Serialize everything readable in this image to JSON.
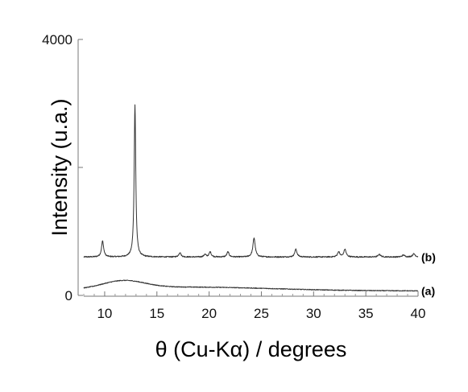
{
  "chart_data": {
    "type": "line",
    "title": "",
    "xlabel": "θ (Cu-Kα) / degrees",
    "ylabel": "Intensity (u.a.)",
    "xlim": [
      8,
      40
    ],
    "ylim": [
      0,
      4000
    ],
    "x_ticks": [
      10,
      15,
      20,
      25,
      30,
      35,
      40
    ],
    "x_tick_labels": [
      "10",
      "15",
      "20",
      "25",
      "30",
      "35",
      "40"
    ],
    "y_ticks": [
      0,
      2000,
      4000
    ],
    "y_tick_labels": [
      "0",
      "",
      "4000"
    ],
    "grid": false,
    "line_color": "#333333",
    "series": [
      {
        "name": "(b)",
        "baseline": 600,
        "noise": 18,
        "peaks": [
          {
            "x": 9.8,
            "height": 250,
            "width": 0.12
          },
          {
            "x": 12.9,
            "height": 2380,
            "width": 0.09
          },
          {
            "x": 17.2,
            "height": 70,
            "width": 0.12
          },
          {
            "x": 19.6,
            "height": 40,
            "width": 0.12
          },
          {
            "x": 20.1,
            "height": 80,
            "width": 0.12
          },
          {
            "x": 21.8,
            "height": 80,
            "width": 0.12
          },
          {
            "x": 24.3,
            "height": 300,
            "width": 0.13
          },
          {
            "x": 28.3,
            "height": 120,
            "width": 0.13
          },
          {
            "x": 32.4,
            "height": 80,
            "width": 0.13
          },
          {
            "x": 33.0,
            "height": 120,
            "width": 0.13
          },
          {
            "x": 36.3,
            "height": 40,
            "width": 0.15
          },
          {
            "x": 38.6,
            "height": 30,
            "width": 0.15
          },
          {
            "x": 39.6,
            "height": 50,
            "width": 0.15
          }
        ]
      },
      {
        "name": "(a)",
        "baseline": 70,
        "noise": 12,
        "humps": [
          {
            "x": 11.8,
            "height": 120,
            "width": 2.0
          },
          {
            "x": 18.0,
            "height": 60,
            "width": 8.0
          }
        ]
      }
    ]
  }
}
